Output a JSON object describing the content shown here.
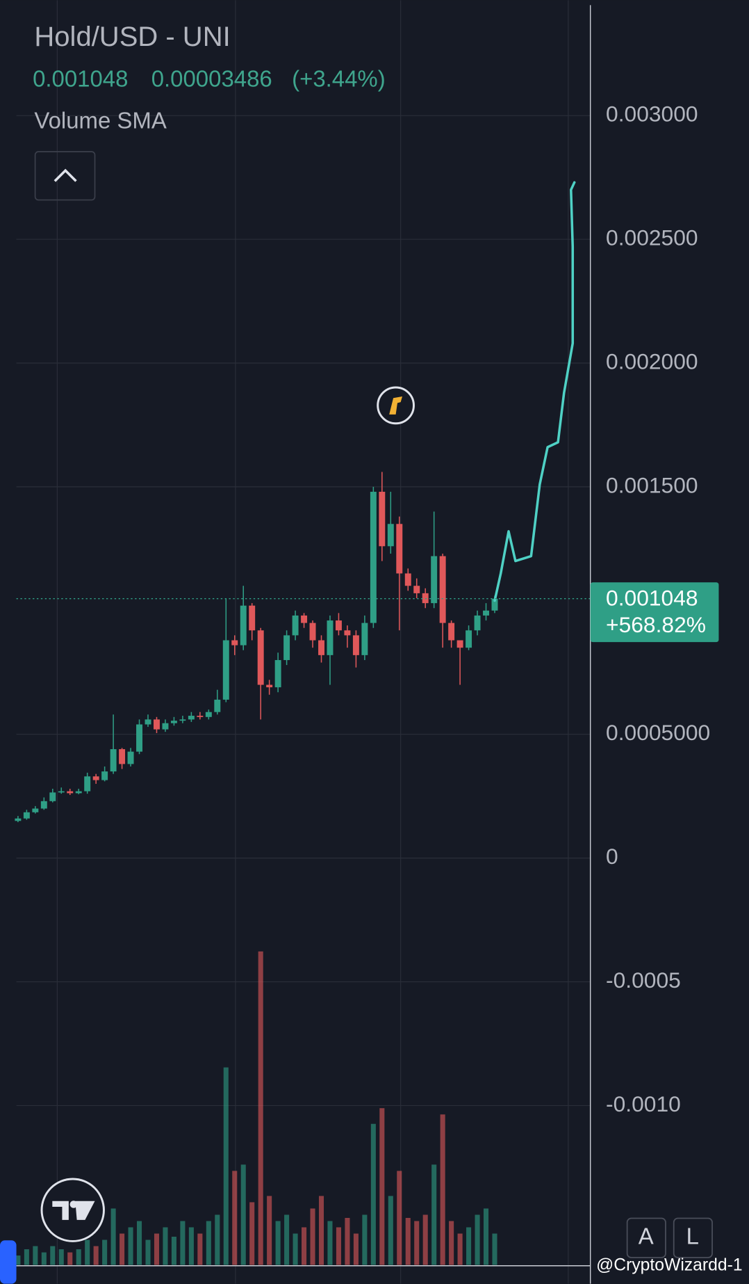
{
  "header": {
    "symbol": "Hold/USD - UNI",
    "price": "0.001048",
    "change": "0.00003486",
    "change_pct": "(+3.44%)",
    "indicator": "Volume SMA"
  },
  "chart_data": {
    "type": "candlestick",
    "up_color": "#2f9f86",
    "down_color": "#e0585a",
    "open": [
      0.00015,
      0.00016,
      0.000185,
      0.0002,
      0.00023,
      0.000265,
      0.00027,
      0.000262,
      0.00027,
      0.00033,
      0.000315,
      0.00035,
      0.00044,
      0.00038,
      0.00043,
      0.00054,
      0.00056,
      0.00052,
      0.000545,
      0.000555,
      0.00056,
      0.000575,
      0.00057,
      0.00059,
      0.00064,
      0.00088,
      0.00086,
      0.00102,
      0.00092,
      0.0007,
      0.00069,
      0.0008,
      0.0009,
      0.00098,
      0.00095,
      0.00088,
      0.00082,
      0.00096,
      0.00092,
      0.0009,
      0.00082,
      0.00095,
      0.00148,
      0.00126,
      0.00135,
      0.00115,
      0.0011,
      0.00107,
      0.00103,
      0.00122,
      0.00095,
      0.00088,
      0.00085,
      0.00092,
      0.00098,
      0.001
    ],
    "high": [
      0.00017,
      0.000195,
      0.00021,
      0.000245,
      0.00028,
      0.000285,
      0.00028,
      0.00028,
      0.000345,
      0.00034,
      0.00037,
      0.00058,
      0.000445,
      0.000445,
      0.00056,
      0.00058,
      0.00057,
      0.00056,
      0.00057,
      0.000575,
      0.00059,
      0.00059,
      0.0006,
      0.00068,
      0.00105,
      0.0009,
      0.0011,
      0.00103,
      0.00093,
      0.00072,
      0.00083,
      0.00092,
      0.001,
      0.00099,
      0.00096,
      0.0009,
      0.00098,
      0.00099,
      0.00094,
      0.00092,
      0.00098,
      0.0015,
      0.00156,
      0.00148,
      0.00138,
      0.00117,
      0.00113,
      0.00109,
      0.0014,
      0.00123,
      0.00096,
      0.00088,
      0.00094,
      0.001,
      0.00103,
      0.00106
    ],
    "low": [
      0.000145,
      0.000155,
      0.00018,
      0.000195,
      0.000225,
      0.00026,
      0.000255,
      0.000258,
      0.00026,
      0.0003,
      0.00031,
      0.00034,
      0.00036,
      0.00037,
      0.00042,
      0.00053,
      0.000505,
      0.00051,
      0.000535,
      0.000545,
      0.00055,
      0.00056,
      0.00056,
      0.00058,
      0.00063,
      0.00082,
      0.00084,
      0.00088,
      0.00056,
      0.00066,
      0.00067,
      0.00078,
      0.00088,
      0.00093,
      0.00085,
      0.00079,
      0.0007,
      0.0009,
      0.00085,
      0.00077,
      0.0008,
      0.00093,
      0.0012,
      0.00123,
      0.00092,
      0.00108,
      0.00105,
      0.00101,
      0.00101,
      0.00085,
      0.00085,
      0.0007,
      0.00084,
      0.0009,
      0.00096,
      0.00099
    ],
    "close": [
      0.00016,
      0.000185,
      0.0002,
      0.00023,
      0.000265,
      0.00027,
      0.000262,
      0.00027,
      0.00033,
      0.000315,
      0.00035,
      0.00044,
      0.00038,
      0.00043,
      0.00054,
      0.00056,
      0.00052,
      0.000545,
      0.000555,
      0.00056,
      0.000575,
      0.00057,
      0.00059,
      0.00064,
      0.00088,
      0.00086,
      0.00102,
      0.00092,
      0.0007,
      0.00069,
      0.0008,
      0.0009,
      0.00098,
      0.00095,
      0.00088,
      0.00082,
      0.00096,
      0.00092,
      0.0009,
      0.00082,
      0.00095,
      0.00148,
      0.00126,
      0.00135,
      0.00115,
      0.0011,
      0.00107,
      0.00103,
      0.00122,
      0.00095,
      0.00088,
      0.00085,
      0.00092,
      0.00098,
      0.001,
      0.001048
    ],
    "volumes": [
      3,
      5,
      6,
      4,
      6,
      5,
      4,
      5,
      8,
      6,
      8,
      18,
      10,
      12,
      14,
      8,
      10,
      12,
      9,
      14,
      12,
      10,
      14,
      16,
      63,
      30,
      32,
      20,
      100,
      22,
      14,
      16,
      10,
      12,
      18,
      22,
      14,
      12,
      15,
      10,
      16,
      45,
      50,
      22,
      30,
      15,
      14,
      16,
      32,
      48,
      14,
      10,
      12,
      16,
      18,
      10
    ],
    "projection": {
      "color": "#4fd1c5",
      "x": [
        55,
        55.7,
        56.6,
        57.4,
        59.2,
        60.2,
        61.1,
        62.3,
        63.0,
        64.0,
        64.0,
        63.8,
        64.2
      ],
      "values": [
        0.00104,
        0.00115,
        0.00132,
        0.0012,
        0.00122,
        0.00151,
        0.00166,
        0.00168,
        0.00188,
        0.00208,
        0.00247,
        0.0027,
        0.00273
      ]
    },
    "last_price": {
      "value": 0.001048,
      "label": "0.001048"
    },
    "last_change_label": "+568.82%",
    "ylim": [
      -0.00172,
      0.003466
    ],
    "yticks": [
      {
        "value": 0.003,
        "label": "0.003000"
      },
      {
        "value": 0.0025,
        "label": "0.002500"
      },
      {
        "value": 0.002,
        "label": "0.002000"
      },
      {
        "value": 0.0015,
        "label": "0.001500"
      },
      {
        "value": 0.0005,
        "label": "0.0005000"
      },
      0,
      -0.0005,
      {
        "value": -0.001,
        "label": "-0.0010"
      }
    ],
    "grid": true
  },
  "buttons": {
    "auto": "A",
    "log": "L"
  },
  "watermark": "@CryptoWizardd-1"
}
